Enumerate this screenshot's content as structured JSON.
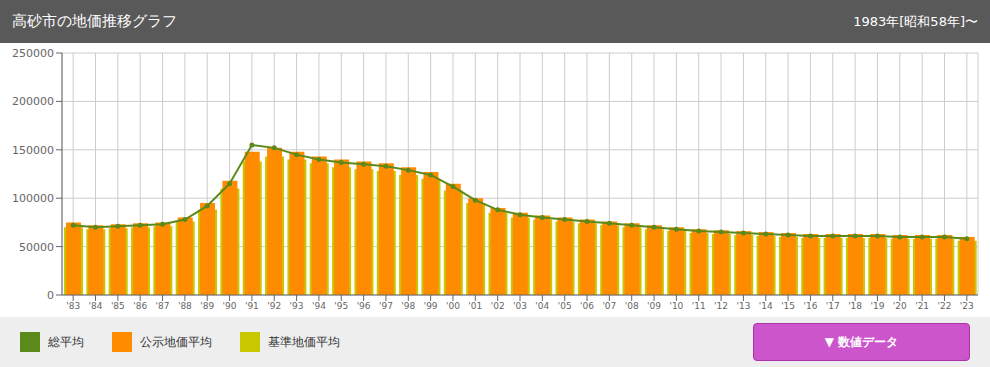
{
  "chart_data": {
    "type": "bar",
    "title": "高砂市の地価推移グラフ",
    "subtitle": "1983年[昭和58年]〜",
    "annotations": [
      "▼ 数値データ"
    ],
    "categories": [
      "'83",
      "'84",
      "'85",
      "'86",
      "'87",
      "'88",
      "'89",
      "'90",
      "'91",
      "'92",
      "'93",
      "'94",
      "'95",
      "'96",
      "'97",
      "'98",
      "'99",
      "'00",
      "'01",
      "'02",
      "'03",
      "'04",
      "'05",
      "'06",
      "'07",
      "'08",
      "'09",
      "'10",
      "'11",
      "'12",
      "'13",
      "'14",
      "'15",
      "'16",
      "'17",
      "'18",
      "'19",
      "'20",
      "'21",
      "'22",
      "'23"
    ],
    "series": [
      {
        "name": "総平均",
        "type": "line",
        "marker": "circle",
        "color": "#5B8A1A",
        "values": [
          72000,
          70000,
          71000,
          72000,
          73000,
          78000,
          92000,
          115000,
          155000,
          152000,
          145000,
          140000,
          137000,
          135000,
          133000,
          129000,
          124000,
          112000,
          98000,
          88000,
          83000,
          80000,
          78000,
          76000,
          74000,
          72000,
          70000,
          68000,
          66000,
          65000,
          64000,
          63000,
          62000,
          61000,
          61000,
          61000,
          61000,
          60000,
          60000,
          60000,
          58000
        ]
      },
      {
        "name": "公示地価平均",
        "type": "bar",
        "color": "#FF8C00",
        "values": [
          75000,
          72000,
          73000,
          74000,
          75000,
          80000,
          95000,
          118000,
          148000,
          152000,
          148000,
          143000,
          140000,
          138000,
          136000,
          132000,
          127000,
          115000,
          100000,
          90000,
          85000,
          82000,
          80000,
          78000,
          76000,
          74000,
          72000,
          70000,
          68000,
          67000,
          66000,
          65000,
          64000,
          63000,
          63000,
          63000,
          63000,
          62000,
          62000,
          62000,
          60000
        ]
      },
      {
        "name": "基準地価平均",
        "type": "bar",
        "color": "#C8C800",
        "values": [
          70000,
          68000,
          69000,
          70000,
          71000,
          76000,
          88000,
          110000,
          138000,
          143000,
          140000,
          136000,
          132000,
          130000,
          128000,
          124000,
          120000,
          108000,
          95000,
          85000,
          80000,
          78000,
          76000,
          74000,
          72000,
          70000,
          68000,
          66000,
          64000,
          63000,
          62000,
          61000,
          60000,
          59000,
          59000,
          59000,
          59000,
          58000,
          58000,
          58000,
          56000
        ]
      }
    ],
    "ylim": [
      0,
      250000
    ],
    "yticks": [
      0,
      50000,
      100000,
      150000,
      200000,
      250000
    ],
    "grid": true,
    "legend": "bottom"
  }
}
